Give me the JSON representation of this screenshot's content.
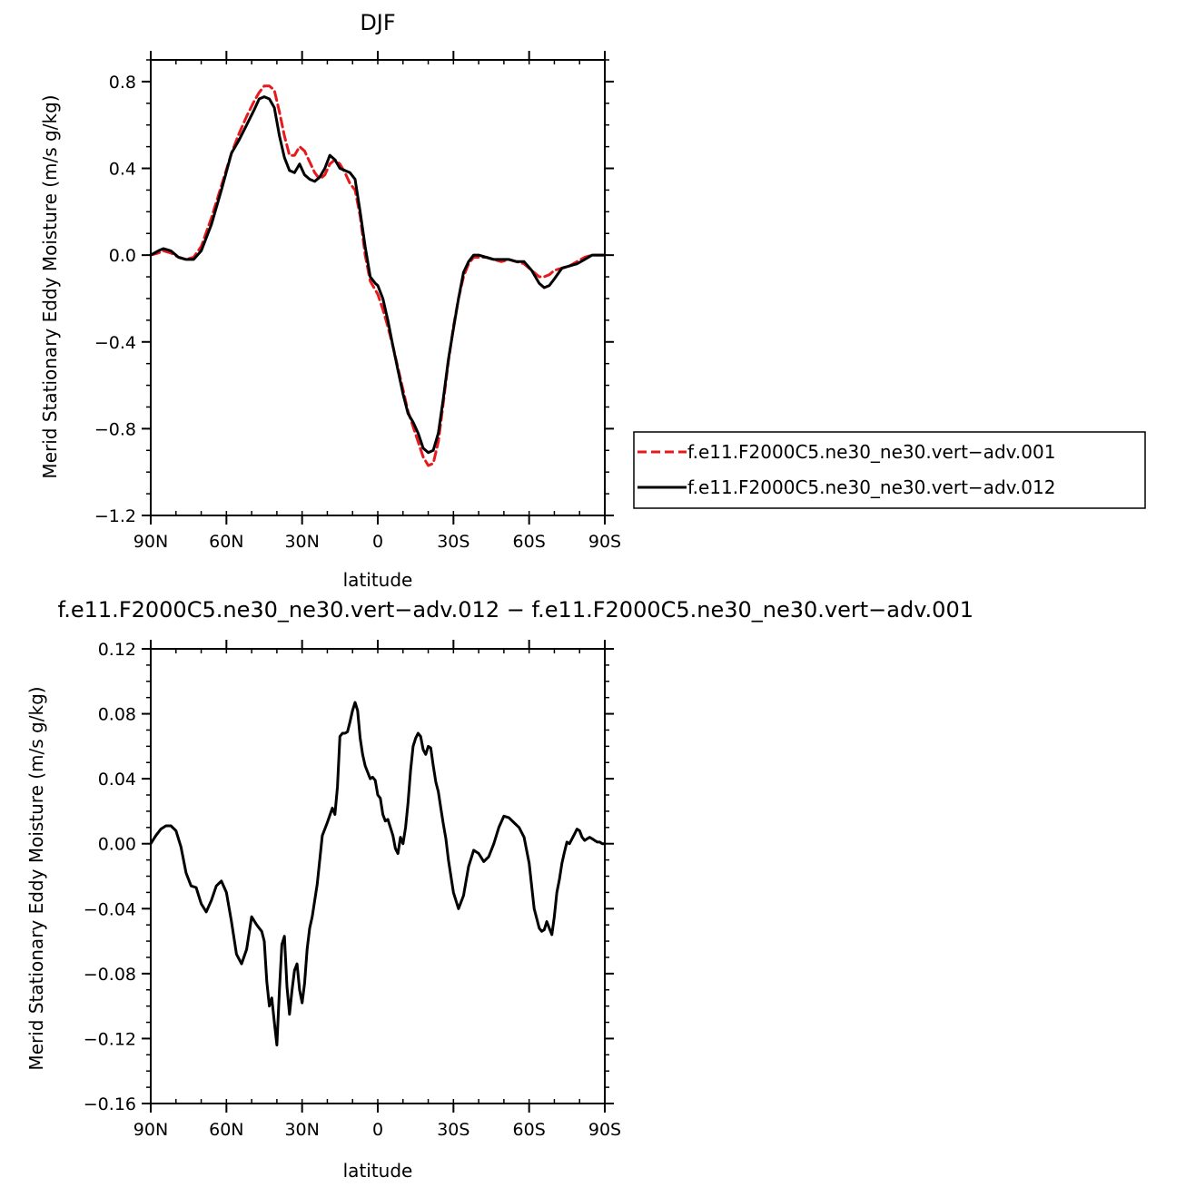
{
  "chart_data": [
    {
      "type": "line",
      "title": "DJF",
      "xlabel": "latitude",
      "ylabel": "Merid Stationary Eddy Moisture (m/s g/kg)",
      "xlim": [
        90,
        -90
      ],
      "ylim": [
        -1.2,
        0.9
      ],
      "grid": false,
      "legend_position": "right",
      "xticks": [
        {
          "value": 90,
          "label": "90N"
        },
        {
          "value": 60,
          "label": "60N"
        },
        {
          "value": 30,
          "label": "30N"
        },
        {
          "value": 0,
          "label": "0"
        },
        {
          "value": -30,
          "label": "30S"
        },
        {
          "value": -60,
          "label": "60S"
        },
        {
          "value": -90,
          "label": "90S"
        }
      ],
      "yticks": [
        {
          "value": 0.8,
          "label": "0.8"
        },
        {
          "value": 0.4,
          "label": "0.4"
        },
        {
          "value": 0.0,
          "label": "0.0"
        },
        {
          "value": -0.4,
          "label": "−0.4"
        },
        {
          "value": -0.8,
          "label": "−0.8"
        },
        {
          "value": -1.2,
          "label": "−1.2"
        }
      ],
      "series": [
        {
          "name": "f.e11.F2000C5.ne30_ne30.vert−adv.001",
          "color": "#e8191c",
          "dash": "dashed",
          "x": [
            90,
            87,
            85,
            82,
            79,
            76,
            73,
            70,
            66,
            62,
            58,
            55,
            52,
            49,
            47,
            45,
            43,
            41,
            39,
            37,
            35,
            33,
            31,
            29,
            27,
            25,
            23,
            21,
            19,
            17,
            15,
            13,
            11,
            9,
            7,
            5,
            3,
            1,
            0,
            -2,
            -4,
            -6,
            -8,
            -10,
            -12,
            -14,
            -16,
            -18,
            -20,
            -22,
            -24,
            -26,
            -28,
            -30,
            -32,
            -34,
            -36,
            -38,
            -40,
            -43,
            -46,
            -49,
            -52,
            -55,
            -58,
            -61,
            -64,
            -66,
            -68,
            -70,
            -73,
            -76,
            -79,
            -82,
            -85,
            -88,
            -90
          ],
          "y": [
            0.0,
            0.01,
            0.02,
            0.01,
            -0.01,
            -0.02,
            -0.01,
            0.04,
            0.17,
            0.32,
            0.47,
            0.56,
            0.64,
            0.71,
            0.75,
            0.78,
            0.78,
            0.76,
            0.66,
            0.55,
            0.46,
            0.46,
            0.5,
            0.48,
            0.43,
            0.38,
            0.35,
            0.37,
            0.42,
            0.44,
            0.42,
            0.38,
            0.33,
            0.3,
            0.18,
            0.0,
            -0.12,
            -0.16,
            -0.18,
            -0.25,
            -0.33,
            -0.42,
            -0.52,
            -0.62,
            -0.72,
            -0.79,
            -0.86,
            -0.93,
            -0.97,
            -0.96,
            -0.86,
            -0.68,
            -0.49,
            -0.33,
            -0.2,
            -0.1,
            -0.04,
            -0.01,
            -0.01,
            -0.01,
            -0.02,
            -0.03,
            -0.02,
            -0.03,
            -0.04,
            -0.07,
            -0.1,
            -0.1,
            -0.09,
            -0.07,
            -0.06,
            -0.05,
            -0.03,
            -0.01,
            0.0,
            0.0,
            0.0
          ]
        },
        {
          "name": "f.e11.F2000C5.ne30_ne30.vert−adv.012",
          "color": "#000000",
          "dash": "solid",
          "x": [
            90,
            87,
            85,
            82,
            79,
            76,
            73,
            70,
            66,
            62,
            58,
            55,
            52,
            49,
            47,
            45,
            43,
            41,
            39,
            37,
            35,
            33,
            31,
            29,
            27,
            25,
            23,
            21,
            19,
            17,
            15,
            13,
            11,
            9,
            7,
            5,
            3,
            1,
            0,
            -2,
            -4,
            -6,
            -8,
            -10,
            -12,
            -14,
            -16,
            -18,
            -20,
            -22,
            -24,
            -26,
            -28,
            -30,
            -32,
            -34,
            -36,
            -38,
            -40,
            -43,
            -46,
            -49,
            -52,
            -55,
            -58,
            -61,
            -64,
            -66,
            -68,
            -70,
            -73,
            -76,
            -79,
            -82,
            -85,
            -88,
            -90
          ],
          "y": [
            0.0,
            0.02,
            0.03,
            0.02,
            -0.01,
            -0.02,
            -0.02,
            0.02,
            0.14,
            0.3,
            0.47,
            0.53,
            0.6,
            0.67,
            0.72,
            0.73,
            0.72,
            0.68,
            0.55,
            0.45,
            0.39,
            0.38,
            0.42,
            0.37,
            0.35,
            0.34,
            0.36,
            0.4,
            0.46,
            0.44,
            0.4,
            0.39,
            0.38,
            0.35,
            0.2,
            0.04,
            -0.1,
            -0.13,
            -0.14,
            -0.2,
            -0.3,
            -0.42,
            -0.53,
            -0.64,
            -0.73,
            -0.77,
            -0.82,
            -0.89,
            -0.91,
            -0.9,
            -0.82,
            -0.66,
            -0.48,
            -0.34,
            -0.2,
            -0.08,
            -0.03,
            0.0,
            0.0,
            -0.01,
            -0.02,
            -0.02,
            -0.02,
            -0.03,
            -0.03,
            -0.07,
            -0.13,
            -0.15,
            -0.14,
            -0.11,
            -0.06,
            -0.05,
            -0.04,
            -0.02,
            0.0,
            0.0,
            0.0
          ]
        }
      ]
    },
    {
      "type": "line",
      "title": "f.e11.F2000C5.ne30_ne30.vert−adv.012 − f.e11.F2000C5.ne30_ne30.vert−adv.001",
      "xlabel": "latitude",
      "ylabel": "Merid Stationary Eddy Moisture (m/s g/kg)",
      "xlim": [
        90,
        -90
      ],
      "ylim": [
        -0.16,
        0.12
      ],
      "grid": false,
      "xticks": [
        {
          "value": 90,
          "label": "90N"
        },
        {
          "value": 60,
          "label": "60N"
        },
        {
          "value": 30,
          "label": "30N"
        },
        {
          "value": 0,
          "label": "0"
        },
        {
          "value": -30,
          "label": "30S"
        },
        {
          "value": -60,
          "label": "60S"
        },
        {
          "value": -90,
          "label": "90S"
        }
      ],
      "yticks": [
        {
          "value": 0.12,
          "label": "0.12"
        },
        {
          "value": 0.08,
          "label": "0.08"
        },
        {
          "value": 0.04,
          "label": "0.04"
        },
        {
          "value": 0.0,
          "label": "0.00"
        },
        {
          "value": -0.04,
          "label": "−0.04"
        },
        {
          "value": -0.08,
          "label": "−0.08"
        },
        {
          "value": -0.12,
          "label": "−0.12"
        },
        {
          "value": -0.16,
          "label": "−0.16"
        }
      ],
      "series": [
        {
          "color": "#000000",
          "dash": "solid",
          "x": [
            90,
            88,
            86,
            84,
            82,
            80,
            78,
            76,
            74,
            72,
            70,
            68,
            66,
            64,
            62,
            60,
            58,
            56,
            54,
            52,
            50,
            48,
            46,
            45,
            44,
            43,
            42,
            41,
            40,
            39,
            38,
            37,
            36,
            35,
            34,
            33,
            32,
            31,
            30,
            29,
            28,
            27,
            26,
            24,
            22,
            20,
            18,
            17,
            16,
            15,
            14,
            13,
            12,
            11,
            10,
            9,
            8,
            7,
            6,
            5,
            4,
            3,
            2,
            1,
            0,
            -1,
            -2,
            -3,
            -4,
            -5,
            -6,
            -7,
            -8,
            -9,
            -10,
            -11,
            -12,
            -13,
            -14,
            -15,
            -16,
            -17,
            -18,
            -19,
            -20,
            -21,
            -22,
            -23,
            -24,
            -25,
            -26,
            -27,
            -28,
            -30,
            -32,
            -34,
            -36,
            -38,
            -40,
            -42,
            -44,
            -46,
            -48,
            -50,
            -52,
            -54,
            -56,
            -58,
            -60,
            -62,
            -64,
            -65,
            -66,
            -67,
            -68,
            -69,
            -70,
            -71,
            -72,
            -73,
            -74,
            -75,
            -76,
            -77,
            -78,
            -79,
            -80,
            -81,
            -82,
            -83,
            -84,
            -85,
            -86,
            -87,
            -88,
            -89,
            -90
          ],
          "y": [
            0.0,
            0.005,
            0.009,
            0.011,
            0.011,
            0.008,
            -0.002,
            -0.018,
            -0.026,
            -0.027,
            -0.037,
            -0.042,
            -0.035,
            -0.026,
            -0.023,
            -0.03,
            -0.048,
            -0.068,
            -0.074,
            -0.065,
            -0.045,
            -0.05,
            -0.054,
            -0.06,
            -0.085,
            -0.1,
            -0.095,
            -0.11,
            -0.124,
            -0.09,
            -0.062,
            -0.057,
            -0.088,
            -0.105,
            -0.09,
            -0.078,
            -0.074,
            -0.09,
            -0.098,
            -0.086,
            -0.065,
            -0.052,
            -0.045,
            -0.025,
            0.005,
            0.013,
            0.022,
            0.018,
            0.035,
            0.066,
            0.068,
            0.068,
            0.069,
            0.075,
            0.082,
            0.087,
            0.082,
            0.065,
            0.055,
            0.048,
            0.044,
            0.04,
            0.041,
            0.039,
            0.03,
            0.028,
            0.018,
            0.014,
            0.015,
            0.01,
            0.005,
            -0.003,
            -0.006,
            0.004,
            0.0,
            0.01,
            0.025,
            0.045,
            0.06,
            0.065,
            0.068,
            0.066,
            0.058,
            0.055,
            0.06,
            0.059,
            0.048,
            0.038,
            0.032,
            0.022,
            0.012,
            0.003,
            -0.01,
            -0.03,
            -0.04,
            -0.032,
            -0.014,
            -0.004,
            -0.006,
            -0.011,
            -0.008,
            0.0,
            0.01,
            0.017,
            0.016,
            0.013,
            0.01,
            0.004,
            -0.012,
            -0.04,
            -0.052,
            -0.054,
            -0.053,
            -0.048,
            -0.052,
            -0.056,
            -0.045,
            -0.03,
            -0.022,
            -0.012,
            -0.005,
            0.001,
            0.0,
            0.003,
            0.006,
            0.009,
            0.008,
            0.004,
            0.002,
            0.003,
            0.004,
            0.003,
            0.002,
            0.001,
            0.001,
            0.0,
            0.0
          ]
        }
      ]
    }
  ]
}
